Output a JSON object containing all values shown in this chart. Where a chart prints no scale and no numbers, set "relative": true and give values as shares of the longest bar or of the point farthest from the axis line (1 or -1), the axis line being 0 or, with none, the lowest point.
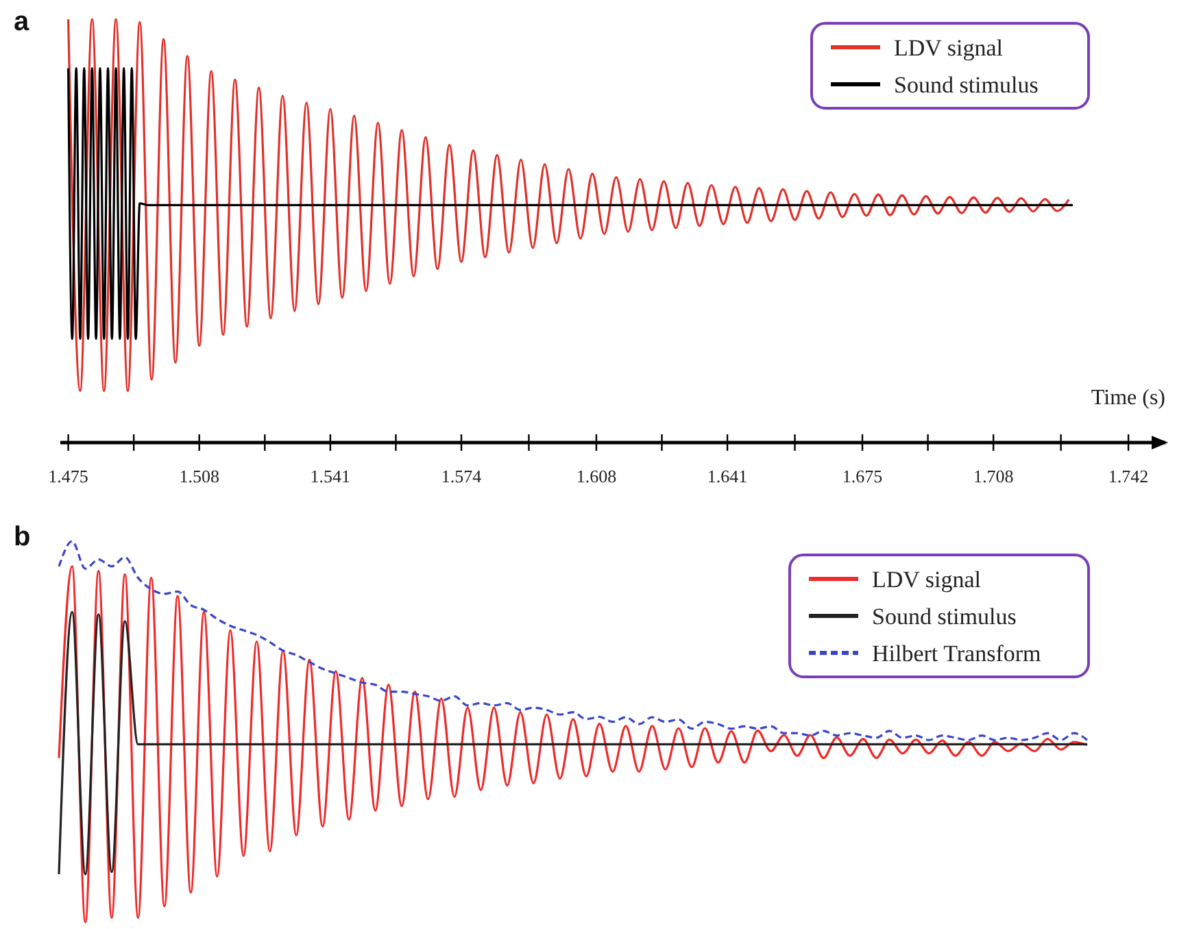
{
  "chart_data": [
    {
      "type": "line",
      "title": "a",
      "xlabel": "Time (s)",
      "relative": true,
      "legend": "top right",
      "xlim": [
        1.473,
        1.752
      ],
      "xticks": [
        1.475,
        {
          "value": 1.4915,
          "label": null
        },
        1.508,
        {
          "value": 1.5245,
          "label": null
        },
        1.541,
        {
          "value": 1.5575,
          "label": null
        },
        1.574,
        {
          "value": 1.591,
          "label": null
        },
        1.608,
        {
          "value": 1.6245,
          "label": null
        },
        1.641,
        {
          "value": 1.658,
          "label": null
        },
        1.675,
        {
          "value": 1.6915,
          "label": null
        },
        1.708,
        {
          "value": 1.725,
          "label": null
        },
        1.742
      ],
      "series": [
        {
          "name": "LDV signal",
          "color": "#e0302a",
          "x": [
            1.475,
            1.478,
            1.481,
            1.484,
            1.487,
            1.49,
            1.493,
            1.496,
            1.499,
            1.502,
            1.505,
            1.508,
            1.511,
            1.514,
            1.517,
            1.52,
            1.523,
            1.526,
            1.529,
            1.532,
            1.535,
            1.538,
            1.541,
            1.544,
            1.547,
            1.55,
            1.553,
            1.556,
            1.559,
            1.562,
            1.565,
            1.568,
            1.571,
            1.574,
            1.577,
            1.58,
            1.583,
            1.586,
            1.589,
            1.592,
            1.595,
            1.598,
            1.601,
            1.604,
            1.607,
            1.61,
            1.613,
            1.616,
            1.619,
            1.622,
            1.625,
            1.628,
            1.631,
            1.634,
            1.637,
            1.64,
            1.643,
            1.646,
            1.649,
            1.652,
            1.655,
            1.658,
            1.661,
            1.664,
            1.667,
            1.67,
            1.673,
            1.676,
            1.679,
            1.682,
            1.685,
            1.688,
            1.691,
            1.694,
            1.697,
            1.7,
            1.703,
            1.706,
            1.709,
            1.712,
            1.715,
            1.718,
            1.721,
            1.724,
            1.727
          ],
          "values": [
            1,
            0.122,
            1,
            0.122,
            1,
            0.122,
            0.993,
            0.149,
            0.953,
            0.189,
            0.913,
            0.229,
            0.877,
            0.255,
            0.857,
            0.274,
            0.838,
            0.294,
            0.819,
            0.311,
            0.803,
            0.327,
            0.788,
            0.342,
            0.772,
            0.358,
            0.755,
            0.375,
            0.738,
            0.393,
            0.721,
            0.41,
            0.703,
            0.427,
            0.69,
            0.438,
            0.679,
            0.449,
            0.668,
            0.46,
            0.657,
            0.471,
            0.646,
            0.482,
            0.635,
            0.493,
            0.627,
            0.498,
            0.622,
            0.502,
            0.617,
            0.507,
            0.613,
            0.512,
            0.608,
            0.516,
            0.604,
            0.519,
            0.601,
            0.523,
            0.598,
            0.526,
            0.594,
            0.529,
            0.591,
            0.533,
            0.587,
            0.536,
            0.586,
            0.537,
            0.584,
            0.539,
            0.582,
            0.541,
            0.58,
            0.542,
            0.579,
            0.543,
            0.578,
            0.545,
            0.577,
            0.546,
            0.575,
            0.547,
            0.574
          ]
        },
        {
          "name": "Sound stimulus",
          "color": "#000000",
          "x": [
            1.475,
            1.476,
            1.477,
            1.478,
            1.479,
            1.48,
            1.481,
            1.482,
            1.483,
            1.484,
            1.485,
            1.486,
            1.487,
            1.488,
            1.489,
            1.49,
            1.491,
            1.492,
            1.493,
            1.495,
            1.728
          ],
          "values": [
            0.884,
            0.245,
            0.884,
            0.245,
            0.884,
            0.245,
            0.884,
            0.245,
            0.884,
            0.245,
            0.884,
            0.245,
            0.884,
            0.245,
            0.884,
            0.245,
            0.884,
            0.245,
            0.565,
            0.561,
            0.561
          ]
        }
      ]
    },
    {
      "type": "line",
      "title": "b",
      "relative": true,
      "legend": "top right",
      "categories": [
        null,
        null,
        null,
        null,
        null,
        null,
        null,
        null,
        null,
        null,
        null,
        null,
        null,
        null,
        null,
        null,
        null,
        null,
        null,
        null,
        null,
        null,
        null,
        null,
        null,
        null,
        null,
        null,
        null,
        null,
        null,
        null,
        null,
        null,
        null,
        null,
        null,
        null,
        null,
        null,
        null,
        null,
        null,
        null,
        null,
        null,
        null,
        null,
        null,
        null,
        null,
        null,
        null,
        null,
        null,
        null,
        null,
        null,
        null,
        null,
        null,
        null,
        null,
        null,
        null,
        null,
        null,
        null,
        null,
        null,
        null,
        null,
        null,
        null,
        null,
        null,
        null,
        null,
        null
      ],
      "series": [
        {
          "name": "LDV signal",
          "color": "#ee2a2a",
          "values": [
            0.431,
            0.934,
            0,
            0.922,
            0.012,
            0.913,
            0.012,
            0.904,
            0.042,
            0.856,
            0.078,
            0.814,
            0.12,
            0.766,
            0.174,
            0.737,
            0.186,
            0.713,
            0.228,
            0.689,
            0.251,
            0.659,
            0.269,
            0.641,
            0.293,
            0.623,
            0.305,
            0.605,
            0.323,
            0.587,
            0.329,
            0.563,
            0.347,
            0.563,
            0.359,
            0.551,
            0.365,
            0.545,
            0.377,
            0.533,
            0.383,
            0.521,
            0.395,
            0.515,
            0.395,
            0.515,
            0.401,
            0.509,
            0.407,
            0.509,
            0.419,
            0.501,
            0.419,
            0.503,
            0.449,
            0.491,
            0.437,
            0.491,
            0.431,
            0.485,
            0.437,
            0.481,
            0.431,
            0.479,
            0.443,
            0.479,
            0.443,
            0.477,
            0.437,
            0.473,
            0.437,
            0.473,
            0.449,
            0.469,
            0.449,
            0.481,
            0.453,
            0.473,
            0.465
          ]
        },
        {
          "name": "Sound stimulus",
          "color": "#222222",
          "values": [
            0.126,
            0.814,
            0.126,
            0.808,
            0.132,
            0.79,
            0.467,
            0.467,
            0.467,
            0.467,
            0.467,
            0.467,
            0.467,
            0.467,
            0.467,
            0.467,
            0.467,
            0.467,
            0.467,
            0.467,
            0.467,
            0.467,
            0.467,
            0.467,
            0.467,
            0.467,
            0.467,
            0.467,
            0.467,
            0.467,
            0.467,
            0.467,
            0.467,
            0.467,
            0.467,
            0.467,
            0.467,
            0.467,
            0.467,
            0.467,
            0.467,
            0.467,
            0.467,
            0.467,
            0.467,
            0.467,
            0.467,
            0.467,
            0.467,
            0.467,
            0.467,
            0.467,
            0.467,
            0.467,
            0.467,
            0.467,
            0.467,
            0.467,
            0.467,
            0.467,
            0.467,
            0.467,
            0.467,
            0.467,
            0.467,
            0.467,
            0.467,
            0.467,
            0.467,
            0.467,
            0.467,
            0.467,
            0.467,
            0.467,
            0.467,
            0.467,
            0.467,
            0.467,
            0.467
          ]
        },
        {
          "name": "Hilbert Transform",
          "color": "#3a46c8",
          "line_style": "dashed",
          "values": [
            0.934,
            1,
            0.928,
            0.952,
            0.934,
            0.958,
            0.904,
            0.874,
            0.862,
            0.868,
            0.832,
            0.82,
            0.796,
            0.778,
            0.766,
            0.754,
            0.735,
            0.713,
            0.701,
            0.683,
            0.665,
            0.653,
            0.641,
            0.629,
            0.623,
            0.605,
            0.605,
            0.599,
            0.593,
            0.581,
            0.593,
            0.569,
            0.575,
            0.569,
            0.575,
            0.557,
            0.563,
            0.557,
            0.545,
            0.551,
            0.533,
            0.539,
            0.526,
            0.538,
            0.52,
            0.538,
            0.526,
            0.532,
            0.508,
            0.526,
            0.52,
            0.508,
            0.514,
            0.508,
            0.514,
            0.496,
            0.496,
            0.49,
            0.502,
            0.49,
            0.496,
            0.49,
            0.484,
            0.502,
            0.484,
            0.49,
            0.478,
            0.49,
            0.484,
            0.478,
            0.49,
            0.478,
            0.484,
            0.478,
            0.484,
            0.496,
            0.478,
            0.496,
            0.478
          ]
        }
      ]
    }
  ]
}
